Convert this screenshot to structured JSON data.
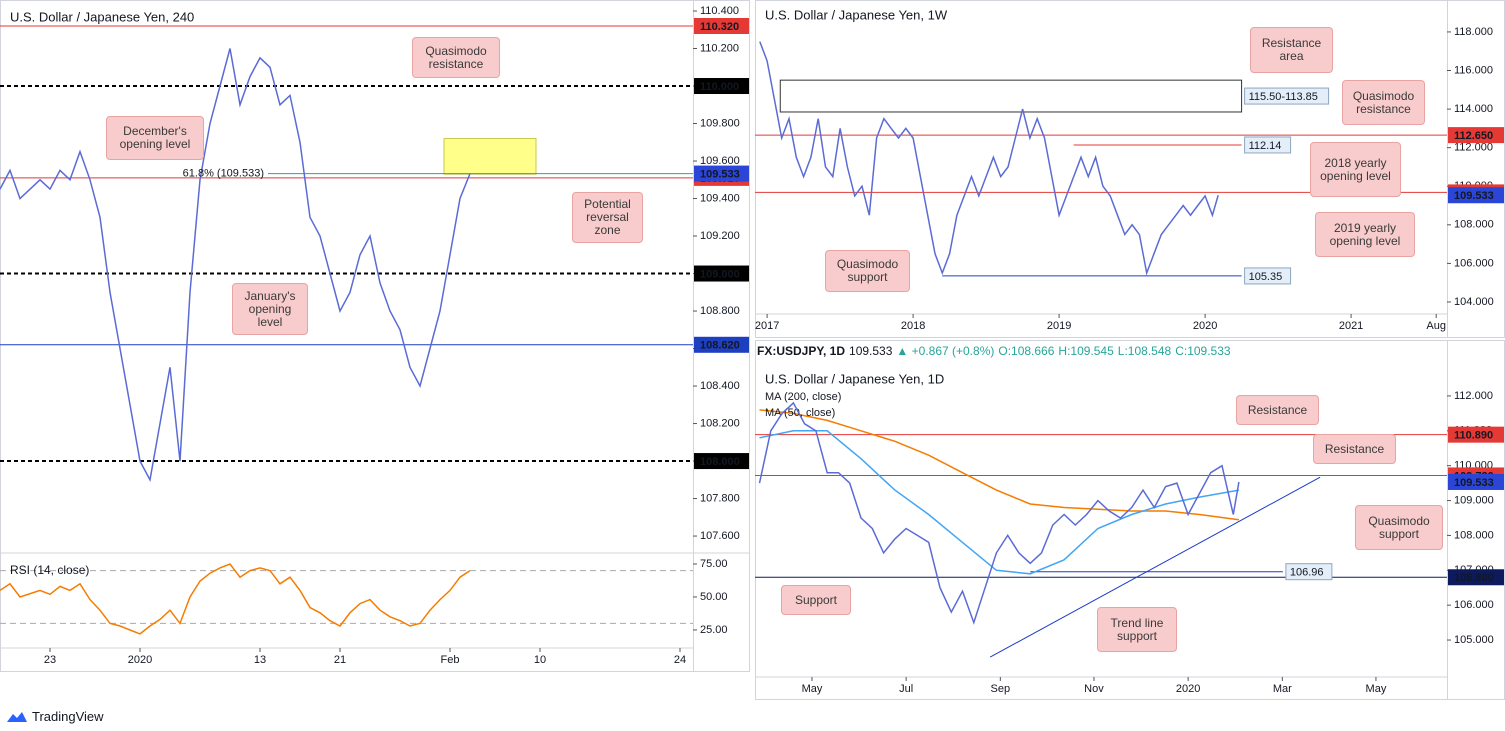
{
  "brand": "TradingView",
  "chart_data": [
    {
      "type": "line",
      "title": "U.S. Dollar / Japanese Yen, 240",
      "color": "#5b6bd6",
      "x": [
        18,
        19,
        20,
        22,
        23,
        24,
        25,
        26,
        27,
        28,
        29,
        30,
        31,
        32,
        33,
        34,
        35,
        36,
        37,
        38,
        39,
        40,
        41,
        42,
        43,
        44,
        45,
        46,
        47,
        48,
        49,
        50,
        51,
        52,
        53,
        54,
        55,
        56,
        57,
        58,
        59,
        60,
        61,
        62,
        63,
        64,
        65
      ],
      "values": [
        109.45,
        109.55,
        109.4,
        109.5,
        109.45,
        109.55,
        109.5,
        109.65,
        109.5,
        109.3,
        108.9,
        108.6,
        108.3,
        108.0,
        107.9,
        108.2,
        108.5,
        108.0,
        108.9,
        109.5,
        109.8,
        110.0,
        110.2,
        109.9,
        110.05,
        110.15,
        110.1,
        109.9,
        109.95,
        109.7,
        109.3,
        109.2,
        109.0,
        108.8,
        108.9,
        109.1,
        109.2,
        108.95,
        108.8,
        108.7,
        108.5,
        108.4,
        108.6,
        108.8,
        109.1,
        109.4,
        109.533
      ],
      "xlim": [
        18,
        87.3
      ],
      "xticks": [
        23,
        {
          "value": 32,
          "label": "2020"
        },
        {
          "value": 44,
          "label": "13"
        },
        {
          "value": 52,
          "label": "21"
        },
        {
          "value": 63,
          "label": "Feb"
        },
        {
          "value": 72,
          "label": "10"
        },
        {
          "value": 86,
          "label": "24"
        }
      ],
      "ylim": [
        107.515,
        110.432
      ],
      "yticks": [
        {
          "value": 110.4,
          "label": "110.400"
        },
        {
          "value": 110.2,
          "label": "110.200"
        },
        {
          "value": 110.0,
          "label": "110.000"
        },
        {
          "value": 109.8,
          "label": "109.800"
        },
        {
          "value": 109.6,
          "label": "109.600"
        },
        {
          "value": 109.4,
          "label": "109.400"
        },
        {
          "value": 109.2,
          "label": "109.200"
        },
        {
          "value": 109.0,
          "label": "109.000"
        },
        {
          "value": 108.8,
          "label": "108.800"
        },
        {
          "value": 108.6,
          "label": "108.600"
        },
        {
          "value": 108.4,
          "label": "108.400"
        },
        {
          "value": 108.2,
          "label": "108.200"
        },
        {
          "value": 108.0,
          "label": "108.000"
        },
        {
          "value": 107.8,
          "label": "107.800"
        },
        {
          "value": 107.6,
          "label": "107.600"
        }
      ],
      "levels": [
        {
          "value": 110.32,
          "label": "110.320",
          "color": "#e53935",
          "style": "solid",
          "label_at": "axis"
        },
        {
          "value": 110.0,
          "label": "110.000",
          "color": "#000000",
          "style": "dashed",
          "label_at": "axis"
        },
        {
          "value": 109.533,
          "label": "61.8% (109.533)",
          "color": "#26a69a",
          "style": "solid",
          "label_at": "inline",
          "x": [
            44.8,
            87.3
          ]
        },
        {
          "value": 109.51,
          "label": "109.510",
          "color": "#e53935",
          "style": "solid",
          "label_at": "axis"
        },
        {
          "value": 109.0,
          "label": "109.000",
          "color": "#000000",
          "style": "dashed",
          "label_at": "axis"
        },
        {
          "value": 108.62,
          "label": "108.620",
          "color": "#1e3fbf",
          "style": "solid",
          "label_at": "axis"
        },
        {
          "value": 108.0,
          "label": "108.000",
          "color": "#000000",
          "style": "dashed",
          "label_at": "axis"
        }
      ],
      "zones": [
        {
          "from": 109.53,
          "to": 109.72,
          "x": [
            62.4,
            71.6
          ],
          "color": "#ffff8a"
        }
      ],
      "last": {
        "value": 109.533,
        "label": "109.533",
        "color": "#2b46d6"
      },
      "annotations": [
        "Quasimodo resistance",
        "December's opening level",
        "Potential reversal zone",
        "January's opening level"
      ],
      "rsi": {
        "label": "RSI (14, close)",
        "color": "#f57c00",
        "values": [
          55,
          60,
          50,
          55,
          52,
          58,
          55,
          60,
          48,
          40,
          30,
          28,
          25,
          22,
          28,
          33,
          40,
          30,
          50,
          62,
          68,
          72,
          75,
          65,
          70,
          72,
          70,
          60,
          65,
          55,
          42,
          38,
          32,
          28,
          38,
          45,
          48,
          40,
          35,
          32,
          28,
          30,
          40,
          48,
          55,
          65,
          70
        ],
        "ylim": [
          13.6,
          81.8
        ],
        "yticks": [
          {
            "value": 75,
            "label": "75.00"
          },
          {
            "value": 50,
            "label": "50.00"
          },
          {
            "value": 25,
            "label": "25.00"
          }
        ],
        "levels": [
          70,
          30
        ]
      }
    },
    {
      "type": "line",
      "title": "U.S. Dollar / Japanese Yen, 1W",
      "color": "#5b6bd6",
      "x": [
        2016.95,
        2017.0,
        2017.05,
        2017.1,
        2017.15,
        2017.2,
        2017.25,
        2017.3,
        2017.35,
        2017.4,
        2017.45,
        2017.5,
        2017.55,
        2017.6,
        2017.65,
        2017.7,
        2017.75,
        2017.8,
        2017.85,
        2017.9,
        2017.95,
        2018.0,
        2018.05,
        2018.1,
        2018.15,
        2018.2,
        2018.25,
        2018.3,
        2018.35,
        2018.4,
        2018.45,
        2018.5,
        2018.55,
        2018.6,
        2018.65,
        2018.7,
        2018.75,
        2018.8,
        2018.85,
        2018.9,
        2018.95,
        2019.0,
        2019.05,
        2019.1,
        2019.15,
        2019.2,
        2019.25,
        2019.3,
        2019.35,
        2019.4,
        2019.45,
        2019.5,
        2019.55,
        2019.6,
        2019.65,
        2019.7,
        2019.75,
        2019.8,
        2019.85,
        2019.9,
        2019.95,
        2020.0,
        2020.05,
        2020.09
      ],
      "values": [
        117.5,
        116.5,
        114.5,
        112.5,
        113.5,
        111.5,
        110.5,
        111.5,
        113.5,
        111.0,
        110.5,
        113.0,
        111.0,
        109.5,
        110.0,
        108.5,
        112.5,
        113.5,
        113.0,
        112.5,
        113.0,
        112.5,
        110.5,
        108.5,
        106.5,
        105.5,
        106.5,
        108.5,
        109.5,
        110.5,
        109.5,
        110.5,
        111.5,
        110.5,
        111.0,
        112.5,
        114.0,
        112.5,
        113.5,
        112.5,
        110.5,
        108.5,
        109.5,
        110.5,
        111.5,
        110.5,
        111.5,
        110.0,
        109.5,
        108.5,
        107.5,
        108.0,
        107.5,
        105.5,
        106.5,
        107.5,
        108.0,
        108.5,
        109.0,
        108.5,
        109.0,
        109.5,
        108.5,
        109.533
      ],
      "xlim": [
        2016.917,
        2021.657
      ],
      "xticks": [
        2017,
        2018,
        2019,
        2020,
        2021,
        {
          "value": 2021.583,
          "label": "Aug"
        }
      ],
      "ylim": [
        103.48,
        119.5
      ],
      "yticks": [
        {
          "value": 118,
          "label": "118.000"
        },
        {
          "value": 116,
          "label": "116.000"
        },
        {
          "value": 114,
          "label": "114.000"
        },
        {
          "value": 112,
          "label": "112.000"
        },
        {
          "value": 110,
          "label": "110.000"
        },
        {
          "value": 108,
          "label": "108.000"
        },
        {
          "value": 106,
          "label": "106.000"
        },
        {
          "value": 104,
          "label": "104.000"
        }
      ],
      "levels": [
        {
          "value": 112.65,
          "label": "112.650",
          "color": "#e53935",
          "style": "solid",
          "label_at": "axis"
        },
        {
          "value": 112.14,
          "label": "112.14",
          "color": "#e53935",
          "style": "solid",
          "label_at": "end",
          "x": [
            2019.1,
            2020.25
          ]
        },
        {
          "value": 109.68,
          "label": "109.680",
          "color": "#e53935",
          "style": "solid",
          "label_at": "axis"
        },
        {
          "value": 105.35,
          "label": "105.35",
          "color": "#1e3fbf",
          "style": "solid",
          "label_at": "end",
          "x": [
            2018.2,
            2020.25
          ]
        }
      ],
      "zones": [
        {
          "from": 113.85,
          "to": 115.5,
          "x": [
            2017.09,
            2020.25
          ],
          "color": "none",
          "label": "115.50-113.85"
        }
      ],
      "last": {
        "value": 109.533,
        "label": "109.533",
        "color": "#2b46d6"
      },
      "annotations": [
        "Resistance area",
        "Quasimodo resistance",
        "2018 yearly opening level",
        "2019 yearly opening level",
        "Quasimodo support"
      ]
    },
    {
      "type": "line",
      "title": "U.S. Dollar / Japanese Yen, 1D",
      "color": "#5b6bd6",
      "info": [
        "FX:USDJPY, 1D",
        "109.533",
        "▲ +0.867 (+0.8%)",
        "O:108.666",
        "H:109.545",
        "L:108.548",
        "C:109.533"
      ],
      "x": [
        2019.24,
        2019.26,
        2019.28,
        2019.3,
        2019.32,
        2019.34,
        2019.36,
        2019.38,
        2019.4,
        2019.42,
        2019.44,
        2019.46,
        2019.48,
        2019.5,
        2019.52,
        2019.54,
        2019.56,
        2019.58,
        2019.6,
        2019.62,
        2019.64,
        2019.66,
        2019.68,
        2019.7,
        2019.72,
        2019.74,
        2019.76,
        2019.78,
        2019.8,
        2019.82,
        2019.84,
        2019.86,
        2019.88,
        2019.9,
        2019.92,
        2019.94,
        2019.96,
        2019.98,
        2020.0,
        2020.02,
        2020.04,
        2020.06,
        2020.07,
        2020.08,
        2020.09
      ],
      "values": [
        109.5,
        111.0,
        111.5,
        111.8,
        111.2,
        111.0,
        109.8,
        109.8,
        109.5,
        108.5,
        108.2,
        107.5,
        107.9,
        108.2,
        108.0,
        107.8,
        106.5,
        105.8,
        106.4,
        105.5,
        106.5,
        107.5,
        108.0,
        107.5,
        107.2,
        107.5,
        108.3,
        108.6,
        108.3,
        108.6,
        109.0,
        108.7,
        108.5,
        108.8,
        109.3,
        108.8,
        109.4,
        109.5,
        108.6,
        109.2,
        109.8,
        110.0,
        109.3,
        108.6,
        109.533
      ],
      "series": [
        {
          "name": "MA (200, close)",
          "color": "#f57c00",
          "x": [
            2019.24,
            2019.3,
            2019.36,
            2019.42,
            2019.48,
            2019.54,
            2019.6,
            2019.66,
            2019.72,
            2019.78,
            2019.84,
            2019.9,
            2019.96,
            2020.02,
            2020.09
          ],
          "values": [
            111.6,
            111.5,
            111.3,
            111.0,
            110.7,
            110.3,
            109.8,
            109.3,
            108.9,
            108.8,
            108.75,
            108.7,
            108.7,
            108.6,
            108.45
          ]
        },
        {
          "name": "MA (50, close)",
          "color": "#42a5f5",
          "x": [
            2019.24,
            2019.3,
            2019.36,
            2019.42,
            2019.48,
            2019.54,
            2019.6,
            2019.66,
            2019.72,
            2019.78,
            2019.84,
            2019.9,
            2019.96,
            2020.02,
            2020.09
          ],
          "values": [
            110.8,
            111.0,
            111.0,
            110.2,
            109.3,
            108.6,
            107.8,
            107.0,
            106.9,
            107.3,
            108.2,
            108.6,
            108.9,
            109.1,
            109.3
          ]
        }
      ],
      "trendline": {
        "x": [
          2019.649,
          2020.234
        ],
        "values": [
          104.51,
          109.67
        ],
        "color": "#1a3acb"
      },
      "xlim": [
        2019.232,
        2020.459
      ],
      "xticks": [
        {
          "value": 2019.333,
          "label": "May"
        },
        {
          "value": 2019.5,
          "label": "Jul"
        },
        {
          "value": 2019.667,
          "label": "Sep"
        },
        {
          "value": 2019.833,
          "label": "Nov"
        },
        2020,
        {
          "value": 2020.167,
          "label": "Mar"
        },
        {
          "value": 2020.333,
          "label": "May"
        }
      ],
      "ylim": [
        103.94,
        112.83
      ],
      "yticks": [
        {
          "value": 112,
          "label": "112.000"
        },
        {
          "value": 111,
          "label": "111.000"
        },
        {
          "value": 110,
          "label": "110.000"
        },
        {
          "value": 109,
          "label": "109.000"
        },
        {
          "value": 108,
          "label": "108.000"
        },
        {
          "value": 107,
          "label": "107.000"
        },
        {
          "value": 106,
          "label": "106.000"
        },
        {
          "value": 105,
          "label": "105.000"
        }
      ],
      "levels": [
        {
          "value": 110.89,
          "label": "110.890",
          "color": "#e53935",
          "style": "solid",
          "label_at": "axis"
        },
        {
          "value": 109.72,
          "label": "109.720",
          "color": "#e53935",
          "style": "solid",
          "label_at": "axis"
        },
        {
          "value": 106.96,
          "label": "106.96",
          "color": "#1e3fbf",
          "style": "solid",
          "label_at": "end",
          "x": [
            2019.72,
            2020.168
          ]
        },
        {
          "value": 106.8,
          "label": "106.800",
          "color": "#0d1b5e",
          "style": "solid",
          "label_at": "axis"
        }
      ],
      "last": {
        "value": 109.533,
        "label": "109.533",
        "color": "#2b46d6"
      },
      "annotations": [
        "Resistance",
        "Resistance",
        "Quasimodo support",
        "Support",
        "Trend line support"
      ]
    }
  ]
}
